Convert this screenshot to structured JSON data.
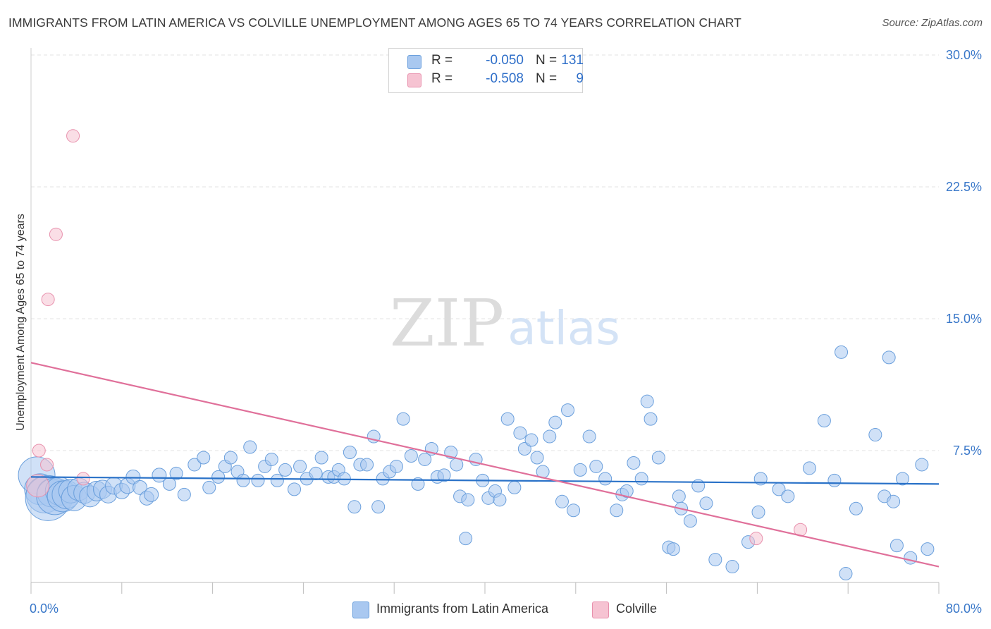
{
  "header": {
    "title": "IMMIGRANTS FROM LATIN AMERICA VS COLVILLE UNEMPLOYMENT AMONG AGES 65 TO 74 YEARS CORRELATION CHART",
    "source": "Source: ZipAtlas.com"
  },
  "watermark": {
    "zip": "ZIP",
    "atlas": "atlas"
  },
  "legend": {
    "series1": {
      "r_label": "R =",
      "r_value": "-0.050",
      "n_label": "N =",
      "n_value": "131",
      "color": "#a9c8f0"
    },
    "series2": {
      "r_label": "R =",
      "r_value": "-0.508",
      "n_label": "N =",
      "n_value": "9",
      "color": "#f6b8cb"
    }
  },
  "bottom_legend": {
    "series1_label": "Immigrants from Latin America",
    "series2_label": "Colville"
  },
  "colors": {
    "blue_fill": "#a9c8f0",
    "blue_stroke": "#6a9fdc",
    "blue_line": "#2a72c8",
    "pink_fill": "#f6c3d2",
    "pink_stroke": "#e891ad",
    "pink_line": "#e0709a",
    "axis_text": "#3a78c9",
    "grid": "#e3e3e3"
  },
  "chart_data": {
    "type": "scatter",
    "title": "IMMIGRANTS FROM LATIN AMERICA VS COLVILLE UNEMPLOYMENT AMONG AGES 65 TO 74 YEARS CORRELATION CHART",
    "xlabel": "",
    "ylabel": "Unemployment Among Ages 65 to 74 years",
    "xlim": [
      0,
      80
    ],
    "ylim": [
      0,
      30
    ],
    "x_tick_labels": [
      {
        "value": 0,
        "label": "0.0%"
      },
      {
        "value": 80,
        "label": "80.0%"
      }
    ],
    "y_tick_labels": [
      {
        "value": 7.5,
        "label": "7.5%"
      },
      {
        "value": 15,
        "label": "15.0%"
      },
      {
        "value": 22.5,
        "label": "22.5%"
      },
      {
        "value": 30,
        "label": "30.0%"
      }
    ],
    "series": [
      {
        "name": "Immigrants from Latin America",
        "r": -0.05,
        "n": 131,
        "trend": {
          "x": [
            0,
            80
          ],
          "y": [
            6.0,
            5.6
          ]
        },
        "points": [
          [
            0.5,
            6.1,
            2.6
          ],
          [
            0.8,
            5.3,
            2.2
          ],
          [
            1.2,
            5.0,
            2.6
          ],
          [
            1.5,
            4.8,
            3.2
          ],
          [
            1.8,
            5.1,
            2.0
          ],
          [
            2.1,
            4.9,
            2.6
          ],
          [
            2.5,
            5.2,
            2.0
          ],
          [
            2.8,
            4.9,
            2.2
          ],
          [
            3.1,
            5.0,
            2.0
          ],
          [
            3.5,
            5.2,
            1.7
          ],
          [
            3.8,
            4.8,
            1.8
          ],
          [
            4.2,
            5.3,
            1.6
          ],
          [
            4.7,
            5.1,
            1.5
          ],
          [
            5.2,
            4.9,
            1.5
          ],
          [
            5.8,
            5.2,
            1.4
          ],
          [
            6.3,
            5.3,
            1.3
          ],
          [
            6.8,
            5.0,
            1.2
          ],
          [
            7.3,
            5.5,
            1.2
          ],
          [
            8.0,
            5.2,
            1.1
          ],
          [
            8.5,
            5.5,
            1.1
          ],
          [
            9.0,
            6.0,
            1.0
          ],
          [
            9.6,
            5.4,
            1.0
          ],
          [
            10.2,
            4.8,
            1.0
          ],
          [
            10.6,
            5.0,
            1.0
          ],
          [
            11.3,
            6.1,
            1.0
          ],
          [
            12.2,
            5.6,
            0.9
          ],
          [
            12.8,
            6.2,
            0.9
          ],
          [
            13.5,
            5.0,
            0.9
          ],
          [
            14.4,
            6.7,
            0.9
          ],
          [
            15.2,
            7.1,
            0.9
          ],
          [
            15.7,
            5.4,
            0.9
          ],
          [
            16.5,
            6.0,
            0.9
          ],
          [
            17.1,
            6.6,
            0.9
          ],
          [
            17.6,
            7.1,
            0.9
          ],
          [
            18.2,
            6.3,
            0.9
          ],
          [
            18.7,
            5.8,
            0.9
          ],
          [
            19.3,
            7.7,
            0.9
          ],
          [
            20.0,
            5.8,
            0.9
          ],
          [
            20.6,
            6.6,
            0.9
          ],
          [
            21.2,
            7.0,
            0.9
          ],
          [
            21.7,
            5.8,
            0.9
          ],
          [
            22.4,
            6.4,
            0.9
          ],
          [
            23.2,
            5.3,
            0.9
          ],
          [
            23.7,
            6.6,
            0.9
          ],
          [
            24.3,
            5.9,
            0.9
          ],
          [
            25.1,
            6.2,
            0.9
          ],
          [
            25.6,
            7.1,
            0.9
          ],
          [
            26.2,
            6.0,
            0.9
          ],
          [
            26.7,
            6.0,
            0.9
          ],
          [
            27.1,
            6.4,
            0.9
          ],
          [
            27.6,
            5.9,
            0.9
          ],
          [
            28.1,
            7.4,
            0.9
          ],
          [
            28.5,
            4.3,
            0.9
          ],
          [
            29.0,
            6.7,
            0.9
          ],
          [
            29.6,
            6.7,
            0.9
          ],
          [
            30.2,
            8.3,
            0.9
          ],
          [
            30.6,
            4.3,
            0.9
          ],
          [
            31.0,
            5.9,
            0.9
          ],
          [
            31.6,
            6.3,
            0.9
          ],
          [
            32.2,
            6.6,
            0.9
          ],
          [
            32.8,
            9.3,
            0.9
          ],
          [
            33.5,
            7.2,
            0.9
          ],
          [
            34.1,
            5.6,
            0.9
          ],
          [
            34.7,
            7.0,
            0.9
          ],
          [
            35.3,
            7.6,
            0.9
          ],
          [
            35.8,
            6.0,
            0.9
          ],
          [
            36.4,
            6.1,
            0.9
          ],
          [
            37.0,
            7.4,
            0.9
          ],
          [
            37.5,
            6.7,
            0.9
          ],
          [
            37.8,
            4.9,
            0.9
          ],
          [
            38.3,
            2.5,
            0.9
          ],
          [
            38.5,
            4.7,
            0.9
          ],
          [
            39.2,
            7.0,
            0.9
          ],
          [
            39.8,
            5.8,
            0.9
          ],
          [
            40.3,
            4.8,
            0.9
          ],
          [
            40.9,
            5.2,
            0.9
          ],
          [
            41.3,
            4.7,
            0.9
          ],
          [
            42.0,
            9.3,
            0.9
          ],
          [
            42.6,
            5.4,
            0.9
          ],
          [
            43.1,
            8.5,
            0.9
          ],
          [
            43.5,
            7.6,
            0.9
          ],
          [
            44.1,
            8.1,
            0.9
          ],
          [
            44.6,
            7.1,
            0.9
          ],
          [
            45.1,
            6.3,
            0.9
          ],
          [
            45.7,
            8.3,
            0.9
          ],
          [
            46.2,
            9.1,
            0.9
          ],
          [
            46.8,
            4.6,
            0.9
          ],
          [
            47.3,
            9.8,
            0.9
          ],
          [
            47.8,
            4.1,
            0.9
          ],
          [
            48.4,
            6.4,
            0.9
          ],
          [
            49.2,
            8.3,
            0.9
          ],
          [
            49.8,
            6.6,
            0.9
          ],
          [
            50.6,
            5.9,
            0.9
          ],
          [
            51.6,
            4.1,
            0.9
          ],
          [
            52.1,
            5.0,
            0.9
          ],
          [
            52.5,
            5.2,
            0.9
          ],
          [
            53.1,
            6.8,
            0.9
          ],
          [
            53.8,
            5.9,
            0.9
          ],
          [
            54.3,
            10.3,
            0.9
          ],
          [
            54.6,
            9.3,
            0.9
          ],
          [
            55.3,
            7.1,
            0.9
          ],
          [
            56.2,
            2.0,
            0.9
          ],
          [
            56.6,
            1.9,
            0.9
          ],
          [
            57.1,
            4.9,
            0.9
          ],
          [
            57.3,
            4.2,
            0.9
          ],
          [
            58.1,
            3.5,
            0.9
          ],
          [
            58.8,
            5.5,
            0.9
          ],
          [
            59.5,
            4.5,
            0.9
          ],
          [
            60.3,
            1.3,
            0.9
          ],
          [
            61.8,
            0.9,
            0.9
          ],
          [
            63.2,
            2.3,
            0.9
          ],
          [
            64.1,
            4.0,
            0.9
          ],
          [
            64.3,
            5.9,
            0.9
          ],
          [
            65.9,
            5.3,
            0.9
          ],
          [
            66.7,
            4.9,
            0.9
          ],
          [
            68.6,
            6.5,
            0.9
          ],
          [
            69.9,
            9.2,
            0.9
          ],
          [
            70.8,
            5.8,
            0.9
          ],
          [
            71.4,
            13.1,
            0.9
          ],
          [
            71.8,
            0.5,
            0.9
          ],
          [
            72.7,
            4.2,
            0.9
          ],
          [
            74.4,
            8.4,
            0.9
          ],
          [
            75.2,
            4.9,
            0.9
          ],
          [
            75.6,
            12.8,
            0.9
          ],
          [
            76.0,
            4.6,
            0.9
          ],
          [
            76.3,
            2.1,
            0.9
          ],
          [
            76.8,
            5.9,
            0.9
          ],
          [
            77.5,
            1.4,
            0.9
          ],
          [
            78.5,
            6.7,
            0.9
          ],
          [
            79.0,
            1.9,
            0.9
          ]
        ]
      },
      {
        "name": "Colville",
        "r": -0.508,
        "n": 9,
        "trend": {
          "x": [
            0,
            80
          ],
          "y": [
            12.5,
            0.9
          ]
        },
        "points": [
          [
            0.6,
            5.5,
            1.6
          ],
          [
            0.7,
            7.5,
            0.9
          ],
          [
            1.4,
            6.7,
            0.9
          ],
          [
            1.5,
            16.1,
            0.9
          ],
          [
            2.2,
            19.8,
            0.9
          ],
          [
            3.7,
            25.4,
            0.9
          ],
          [
            4.6,
            5.9,
            0.9
          ],
          [
            63.9,
            2.5,
            0.9
          ],
          [
            67.8,
            3.0,
            0.9
          ]
        ]
      }
    ]
  }
}
